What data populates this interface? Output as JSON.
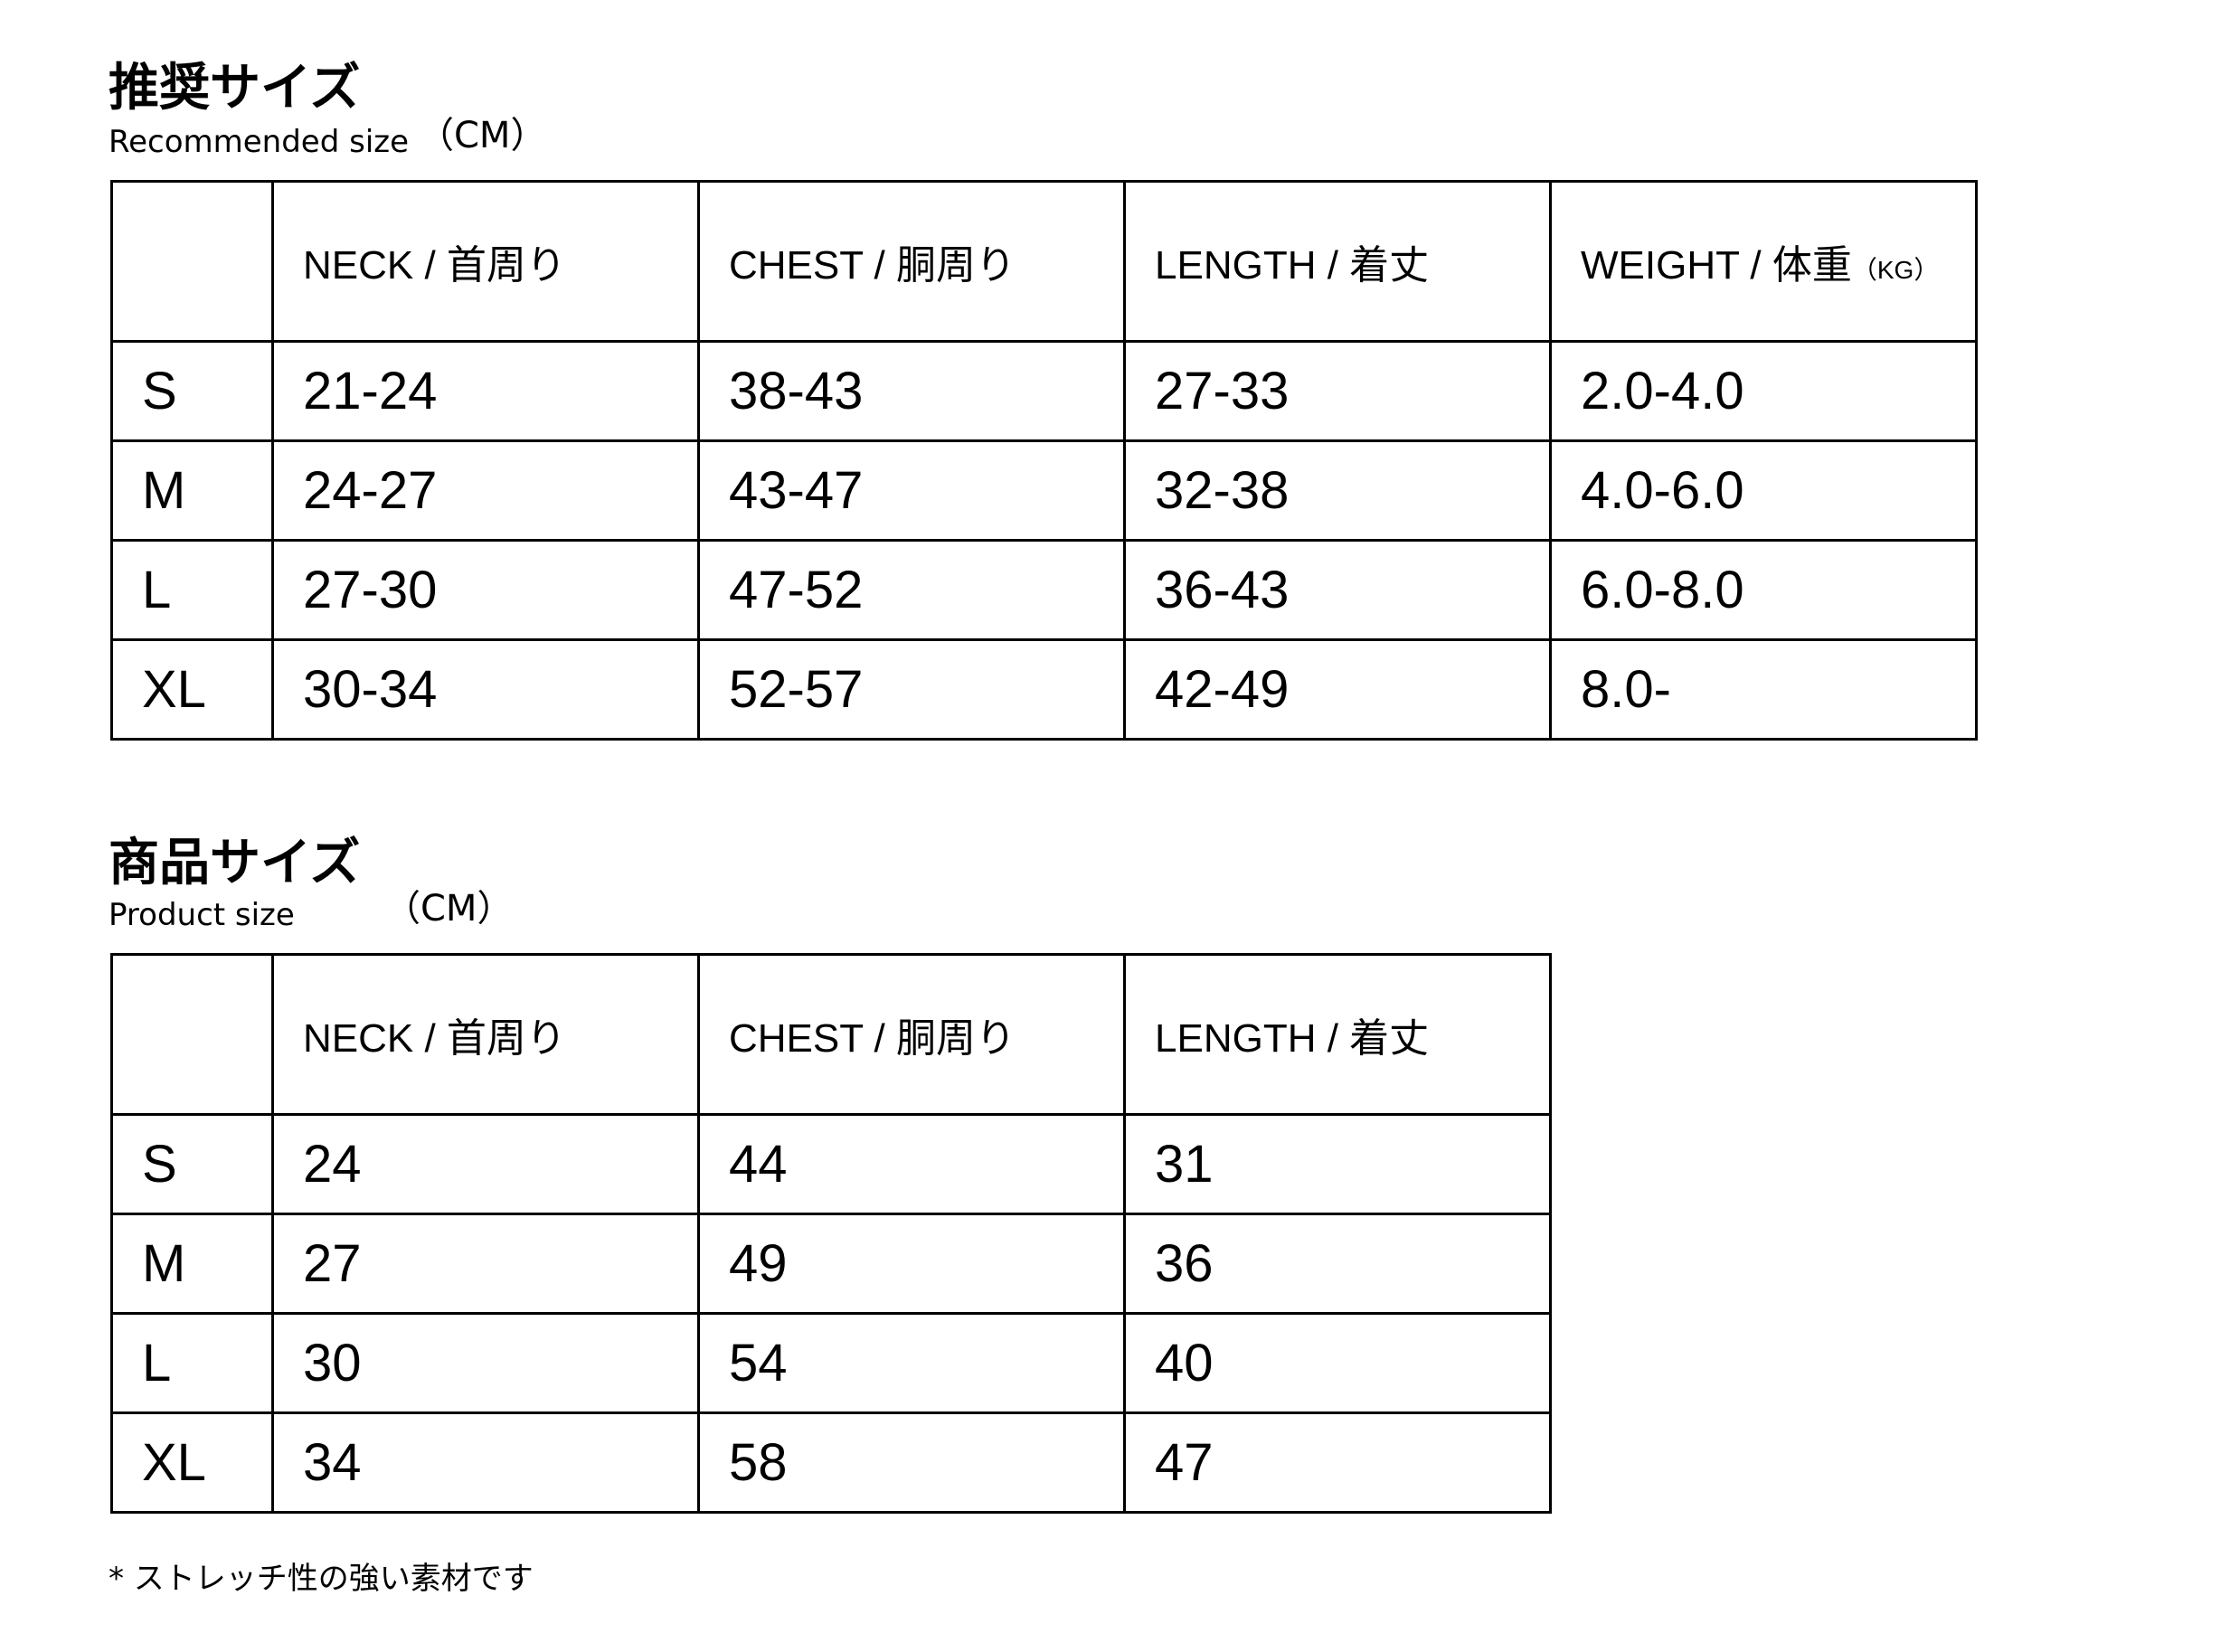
{
  "recommended": {
    "title": "推奨サイズ",
    "subtitle": "Recommended size",
    "unit": "（CM）",
    "headers": [
      "",
      "NECK / 首周り",
      "CHEST / 胴周り",
      "LENGTH / 着丈",
      "WEIGHT / 体重"
    ],
    "weight_unit": "（KG）",
    "rows": [
      [
        "S",
        "21-24",
        "38-43",
        "27-33",
        "2.0-4.0"
      ],
      [
        "M",
        "24-27",
        "43-47",
        "32-38",
        "4.0-6.0"
      ],
      [
        "L",
        "27-30",
        "47-52",
        "36-43",
        "6.0-8.0"
      ],
      [
        "XL",
        "30-34",
        "52-57",
        "42-49",
        "8.0-"
      ]
    ]
  },
  "product": {
    "title": "商品サイズ",
    "subtitle": "Product size",
    "unit": "（CM）",
    "headers": [
      "",
      "NECK / 首周り",
      "CHEST / 胴周り",
      "LENGTH / 着丈"
    ],
    "rows": [
      [
        "S",
        "24",
        "44",
        "31"
      ],
      [
        "M",
        "27",
        "49",
        "36"
      ],
      [
        "L",
        "30",
        "54",
        "40"
      ],
      [
        "XL",
        "34",
        "58",
        "47"
      ]
    ]
  },
  "note": "* ストレッチ性の強い素材です"
}
